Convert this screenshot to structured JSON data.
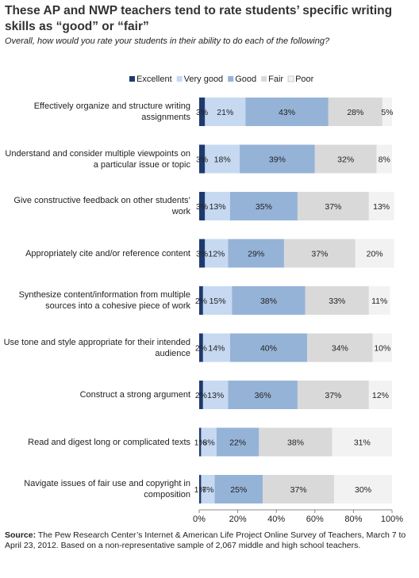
{
  "chart_data": {
    "type": "stacked-bar-horizontal",
    "title": "These AP and NWP teachers tend to rate students’ specific writing skills as “good” or “fair”",
    "subtitle": "Overall, how would you rate your students in their ability to do each of the following?",
    "categories": [
      "Effectively organize and structure writing assignments",
      "Understand and consider multiple viewpoints on a particular issue or topic",
      "Give constructive feedback on other students’ work",
      "Appropriately cite and/or reference content",
      "Synthesize content/information from multiple sources into a cohesive piece of work",
      "Use tone and style appropriate for their intended audience",
      "Construct a strong argument",
      "Read and digest long or complicated texts",
      "Navigate issues of fair use and copyright in composition"
    ],
    "series": [
      {
        "name": "Excellent",
        "color": "#1f3a6e",
        "values": [
          3,
          3,
          3,
          3,
          2,
          2,
          2,
          1,
          1
        ],
        "value_labels": [
          "3%",
          "3%",
          "3%",
          "3%",
          "2%",
          "2%",
          "2%",
          "1%",
          "1%"
        ]
      },
      {
        "name": "Very good",
        "color": "#c6d9f1",
        "values": [
          21,
          18,
          13,
          12,
          15,
          14,
          13,
          8,
          7
        ],
        "value_labels": [
          "21%",
          "18%",
          "13%",
          "12%",
          "15%",
          "14%",
          "13%",
          "8%",
          "7%"
        ]
      },
      {
        "name": "Good",
        "color": "#95b3d7",
        "values": [
          43,
          39,
          35,
          29,
          38,
          40,
          36,
          22,
          25
        ],
        "value_labels": [
          "43%",
          "39%",
          "35%",
          "29%",
          "38%",
          "40%",
          "36%",
          "22%",
          "25%"
        ]
      },
      {
        "name": "Fair",
        "color": "#d9d9d9",
        "values": [
          28,
          32,
          37,
          37,
          33,
          34,
          37,
          38,
          37
        ],
        "value_labels": [
          "28%",
          "32%",
          "37%",
          "37%",
          "33%",
          "34%",
          "37%",
          "38%",
          "37%"
        ]
      },
      {
        "name": "Poor",
        "color": "#f2f2f2",
        "values": [
          5,
          8,
          13,
          20,
          11,
          10,
          12,
          31,
          30
        ],
        "value_labels": [
          "5%",
          "8%",
          "13%",
          "20%",
          "11%",
          "10%",
          "12%",
          "31%",
          "30%"
        ]
      }
    ],
    "xlim": [
      0,
      100
    ],
    "xticks": [
      {
        "value": 0,
        "label": "0%"
      },
      {
        "value": 20,
        "label": "20%"
      },
      {
        "value": 40,
        "label": "40%"
      },
      {
        "value": 60,
        "label": "60%"
      },
      {
        "value": 80,
        "label": "80%"
      },
      {
        "value": 100,
        "label": "100%"
      }
    ],
    "source": {
      "label": "Source:",
      "text": "The Pew Research Center’s Internet & American Life Project Online Survey of Teachers, March 7 to April 23, 2012.  Based on a non-representative sample of 2,067 middle and high school teachers."
    }
  }
}
